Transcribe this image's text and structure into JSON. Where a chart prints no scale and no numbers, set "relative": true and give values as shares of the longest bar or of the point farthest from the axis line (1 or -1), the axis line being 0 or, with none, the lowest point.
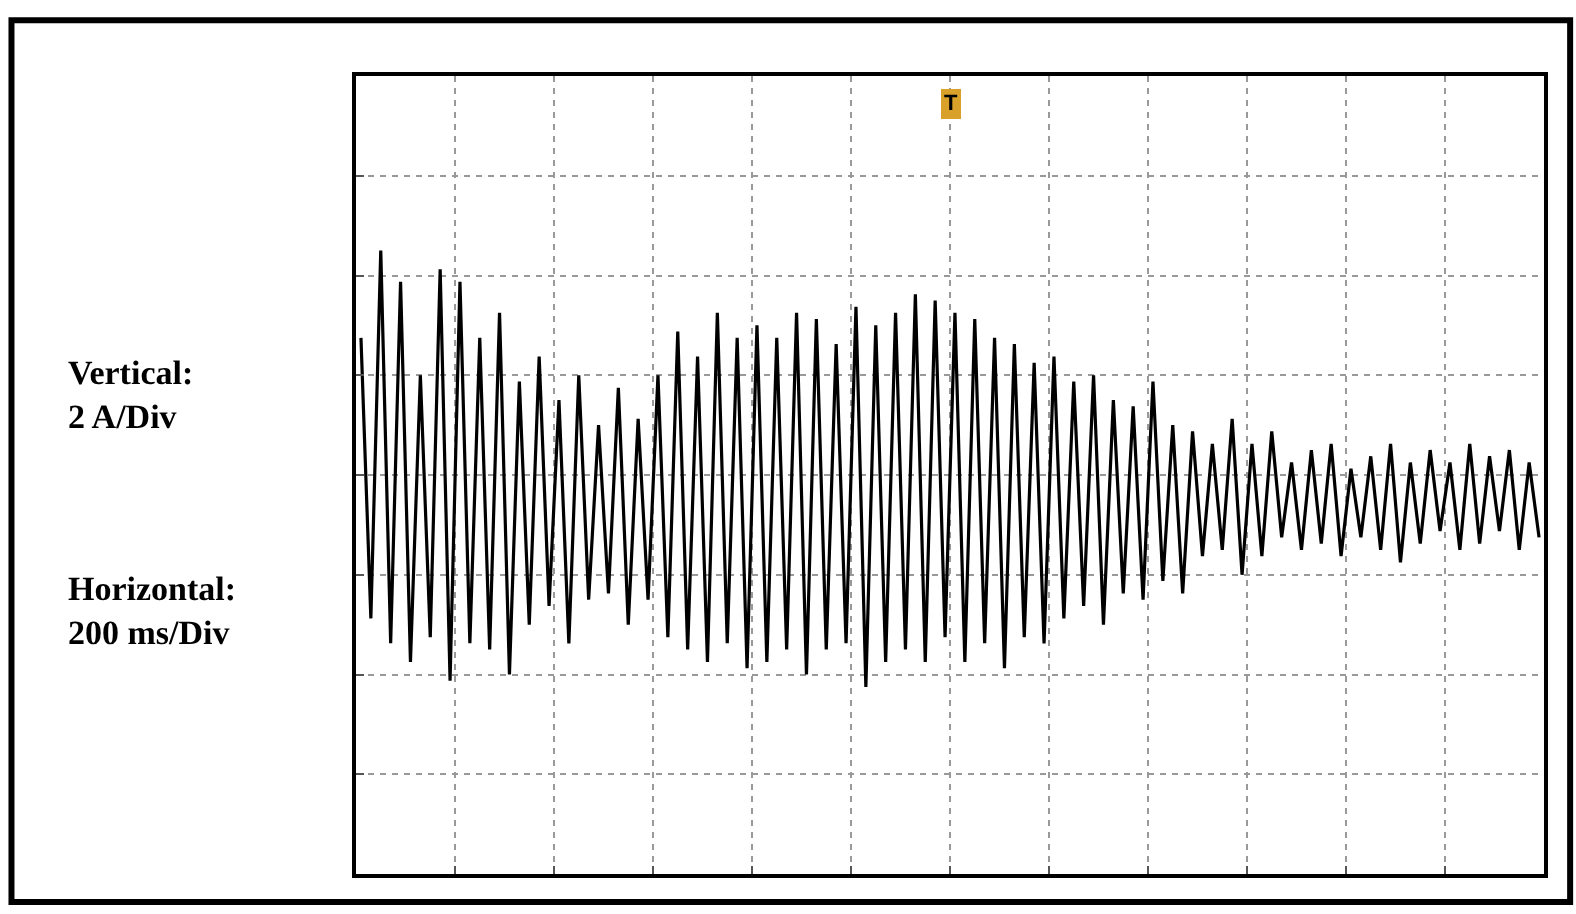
{
  "chart_data": {
    "type": "line",
    "relative": true,
    "grid": true,
    "marker": "none",
    "line_style": "solid",
    "annotations": [
      "Vertical:\n2 A/Div",
      "Horizontal:\n200 ms/Div",
      "T"
    ],
    "categories": [
      null,
      null,
      null,
      null,
      null,
      null,
      null,
      null,
      null,
      null,
      null,
      null,
      null,
      null,
      null,
      null,
      null,
      null,
      null,
      null,
      null,
      null,
      null,
      null,
      null,
      null,
      null,
      null,
      null,
      null,
      null,
      null,
      null,
      null,
      null,
      null,
      null,
      null,
      null,
      null,
      null,
      null,
      null,
      null,
      null,
      null,
      null,
      null,
      null,
      null,
      null,
      null,
      null,
      null,
      null,
      null,
      null,
      null,
      null,
      null,
      null,
      null,
      null,
      null,
      null,
      null,
      null,
      null,
      null,
      null,
      null,
      null,
      null,
      null,
      null,
      null,
      null,
      null,
      null,
      null,
      null,
      null,
      null,
      null,
      null,
      null,
      null,
      null,
      null,
      null,
      null,
      null,
      null,
      null,
      null,
      null,
      null,
      null,
      null,
      null,
      null,
      null,
      null,
      null,
      null,
      null,
      null,
      null,
      null,
      null,
      null,
      null,
      null,
      null,
      null,
      null,
      null,
      null,
      null,
      null
    ],
    "series": [
      {
        "color": "#000000",
        "values": [
          0.86,
          0.41,
          1.0,
          0.37,
          0.95,
          0.34,
          0.8,
          0.38,
          0.97,
          0.31,
          0.95,
          0.37,
          0.86,
          0.36,
          0.9,
          0.32,
          0.79,
          0.4,
          0.83,
          0.43,
          0.76,
          0.37,
          0.8,
          0.44,
          0.72,
          0.45,
          0.78,
          0.4,
          0.73,
          0.44,
          0.8,
          0.38,
          0.87,
          0.36,
          0.83,
          0.34,
          0.9,
          0.37,
          0.86,
          0.33,
          0.88,
          0.34,
          0.86,
          0.36,
          0.9,
          0.32,
          0.89,
          0.36,
          0.85,
          0.37,
          0.91,
          0.3,
          0.88,
          0.34,
          0.9,
          0.36,
          0.93,
          0.34,
          0.92,
          0.38,
          0.9,
          0.34,
          0.89,
          0.37,
          0.86,
          0.33,
          0.85,
          0.38,
          0.82,
          0.37,
          0.83,
          0.41,
          0.79,
          0.43,
          0.8,
          0.4,
          0.76,
          0.45,
          0.75,
          0.44,
          0.79,
          0.47,
          0.72,
          0.45,
          0.71,
          0.51,
          0.69,
          0.52,
          0.73,
          0.48,
          0.69,
          0.51,
          0.71,
          0.54,
          0.66,
          0.52,
          0.68,
          0.53,
          0.69,
          0.51,
          0.65,
          0.54,
          0.67,
          0.52,
          0.69,
          0.5,
          0.66,
          0.53,
          0.68,
          0.55,
          0.66,
          0.52,
          0.69,
          0.53,
          0.67,
          0.55,
          0.68,
          0.52,
          0.66,
          0.54
        ]
      }
    ]
  }
}
